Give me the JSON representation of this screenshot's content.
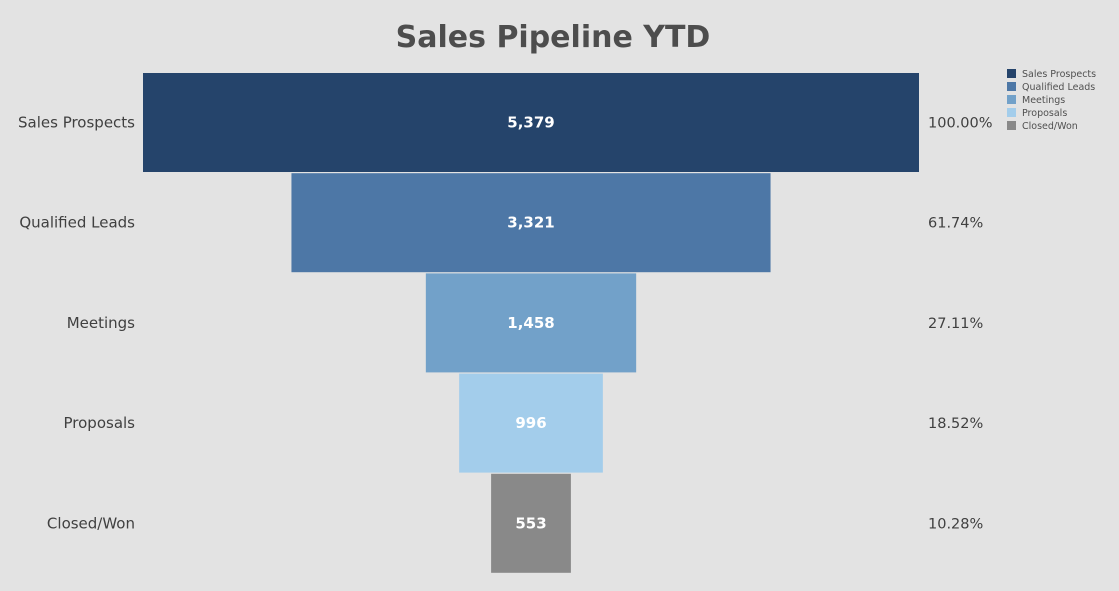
{
  "chart_data": {
    "type": "funnel",
    "title": "Sales Pipeline YTD",
    "categories": [
      "Sales Prospects",
      "Qualified Leads",
      "Meetings",
      "Proposals",
      "Closed/Won"
    ],
    "values": [
      5379,
      3321,
      1458,
      996,
      553
    ],
    "value_labels": [
      "5,379",
      "3,321",
      "1,458",
      "996",
      "553"
    ],
    "percent_labels": [
      "100.00%",
      "61.74%",
      "27.11%",
      "18.52%",
      "10.28%"
    ],
    "colors": [
      "#25446b",
      "#4d77a6",
      "#72a1c9",
      "#a3cdeb",
      "#898989"
    ],
    "legend": {
      "placement": "top-right",
      "entries": [
        "Sales Prospects",
        "Qualified Leads",
        "Meetings",
        "Proposals",
        "Closed/Won"
      ]
    },
    "grid": false
  },
  "background_color": "#e3e3e3"
}
